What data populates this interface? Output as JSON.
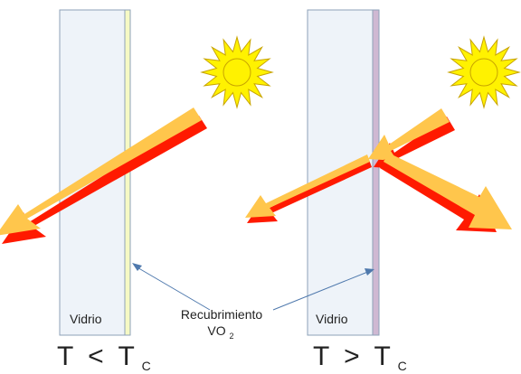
{
  "colors": {
    "glass_fill": "#eef3f9",
    "glass_stroke": "#8da2b8",
    "coating_cold": "#f6f9c4",
    "coating_hot": "#cfb8d2",
    "sun_fill": "#fff200",
    "sun_stroke": "#c8a400",
    "ray_body": "#ffc64c",
    "ray_shadow": "#ff1a00",
    "pointer_line": "#4f79ad"
  },
  "icons": {
    "sun": "sun-icon"
  },
  "panels": [
    {
      "glass_label": "Vidrio",
      "condition_var": "T",
      "condition_op": "<",
      "condition_sym": "T",
      "condition_sub": "C"
    },
    {
      "glass_label": "Vidrio",
      "condition_var": "T",
      "condition_op": ">",
      "condition_sym": "T",
      "condition_sub": "C"
    }
  ],
  "coating_label": {
    "line1": "Recubrimiento",
    "line2_base": "VO",
    "line2_sub": "2"
  }
}
